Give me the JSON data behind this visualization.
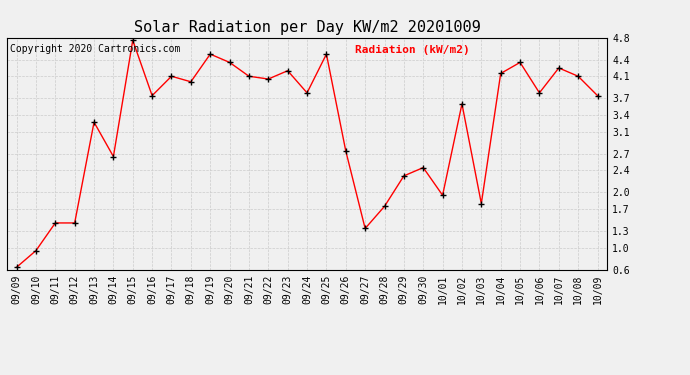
{
  "title": "Solar Radiation per Day KW/m2 20201009",
  "copyright": "Copyright 2020 Cartronics.com",
  "legend_label": "Radiation (kW/m2)",
  "dates": [
    "09/09",
    "09/10",
    "09/11",
    "09/12",
    "09/13",
    "09/14",
    "09/15",
    "09/16",
    "09/17",
    "09/18",
    "09/19",
    "09/20",
    "09/21",
    "09/22",
    "09/23",
    "09/24",
    "09/25",
    "09/26",
    "09/27",
    "09/28",
    "09/29",
    "09/30",
    "10/01",
    "10/02",
    "10/03",
    "10/04",
    "10/05",
    "10/06",
    "10/07",
    "10/08",
    "10/09"
  ],
  "values": [
    0.65,
    0.95,
    1.45,
    1.45,
    3.27,
    2.65,
    4.75,
    3.75,
    4.1,
    4.0,
    4.5,
    4.35,
    4.1,
    4.05,
    4.2,
    3.8,
    4.5,
    2.75,
    1.35,
    1.75,
    2.3,
    2.45,
    1.95,
    3.6,
    1.8,
    4.15,
    4.35,
    3.8,
    4.25,
    4.1,
    3.75
  ],
  "ylim": [
    0.6,
    4.8
  ],
  "yticks": [
    0.6,
    1.0,
    1.3,
    1.7,
    2.0,
    2.4,
    2.7,
    3.1,
    3.4,
    3.7,
    4.1,
    4.4,
    4.8
  ],
  "line_color": "red",
  "marker_color": "black",
  "bg_color": "#f0f0f0",
  "grid_color": "#cccccc",
  "title_fontsize": 11,
  "copyright_fontsize": 7,
  "legend_fontsize": 8,
  "tick_fontsize": 7
}
